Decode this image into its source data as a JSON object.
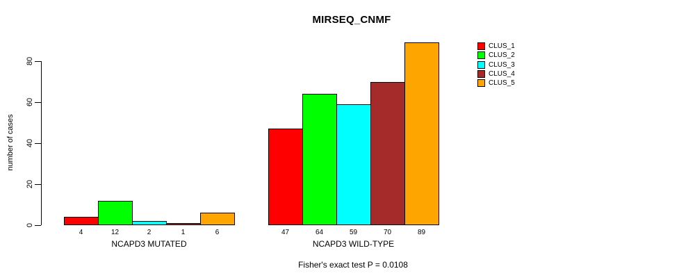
{
  "chart_data": {
    "type": "bar",
    "title": "MIRSEQ_CNMF",
    "ylabel": "number of cases",
    "xlabel": "",
    "ylim": [
      0,
      89
    ],
    "yticks": [
      0,
      20,
      40,
      60,
      80
    ],
    "grid": false,
    "legend_position": "right",
    "legend": [
      "CLUS_1",
      "CLUS_2",
      "CLUS_3",
      "CLUS_4",
      "CLUS_5"
    ],
    "colors": [
      "#FF0000",
      "#00FF00",
      "#00FFFF",
      "#A52A2A",
      "#FFA500"
    ],
    "groups": [
      {
        "label": "NCAPD3 MUTATED",
        "values": [
          4,
          12,
          2,
          1,
          6
        ]
      },
      {
        "label": "NCAPD3 WILD-TYPE",
        "values": [
          47,
          64,
          59,
          70,
          89
        ]
      }
    ],
    "annotation": "Fisher's exact test P = 0.0108"
  }
}
